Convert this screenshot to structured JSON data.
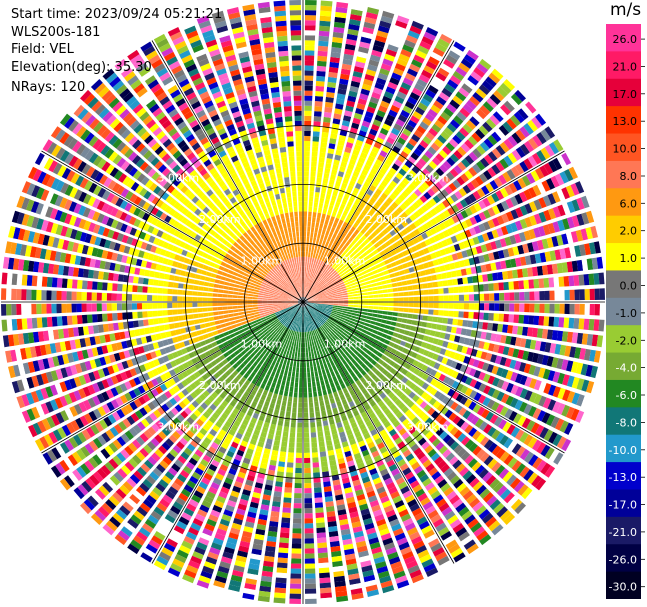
{
  "info": {
    "start_time": "Start time: 2023/09/24 05:21:21",
    "instrument": "WLS200s-181",
    "field": "Field: VEL",
    "elevation": "Elevation(deg): 35.30",
    "nrays": "NRays: 120"
  },
  "chart_data": {
    "type": "heatmap",
    "subtype": "lidar-ppi-polar",
    "field": "VEL",
    "units": "m/s",
    "elevation_deg": 35.3,
    "n_rays": 120,
    "range_rings_km": [
      1.0,
      2.0,
      3.0
    ],
    "ring_labels": [
      "1.00km",
      "2.00km",
      "3.00km"
    ],
    "spoke_angles_deg": [
      0,
      30,
      60,
      90,
      120,
      150,
      180,
      210,
      240,
      270,
      300,
      330
    ],
    "colorbar": {
      "ticks": [
        "26.0",
        "21.0",
        "17.0",
        "13.0",
        "10.0",
        "8.0",
        "6.0",
        "2.0",
        "1.0",
        "0.0",
        "-1.0",
        "-2.0",
        "-4.0",
        "-6.0",
        "-8.0",
        "-10.0",
        "-13.0",
        "-17.0",
        "-21.0",
        "-26.0",
        "-30.0"
      ],
      "colors": [
        "#ff3399",
        "#ff1a66",
        "#e6003a",
        "#ff3300",
        "#ff5522",
        "#ff7755",
        "#ff9911",
        "#ffcc00",
        "#ffff00",
        "#777777",
        "#778899",
        "#99cc33",
        "#77aa33",
        "#228822",
        "#117777",
        "#2299cc",
        "#0000cc",
        "#000099",
        "#1a1a66",
        "#000044",
        "#000022"
      ]
    }
  }
}
